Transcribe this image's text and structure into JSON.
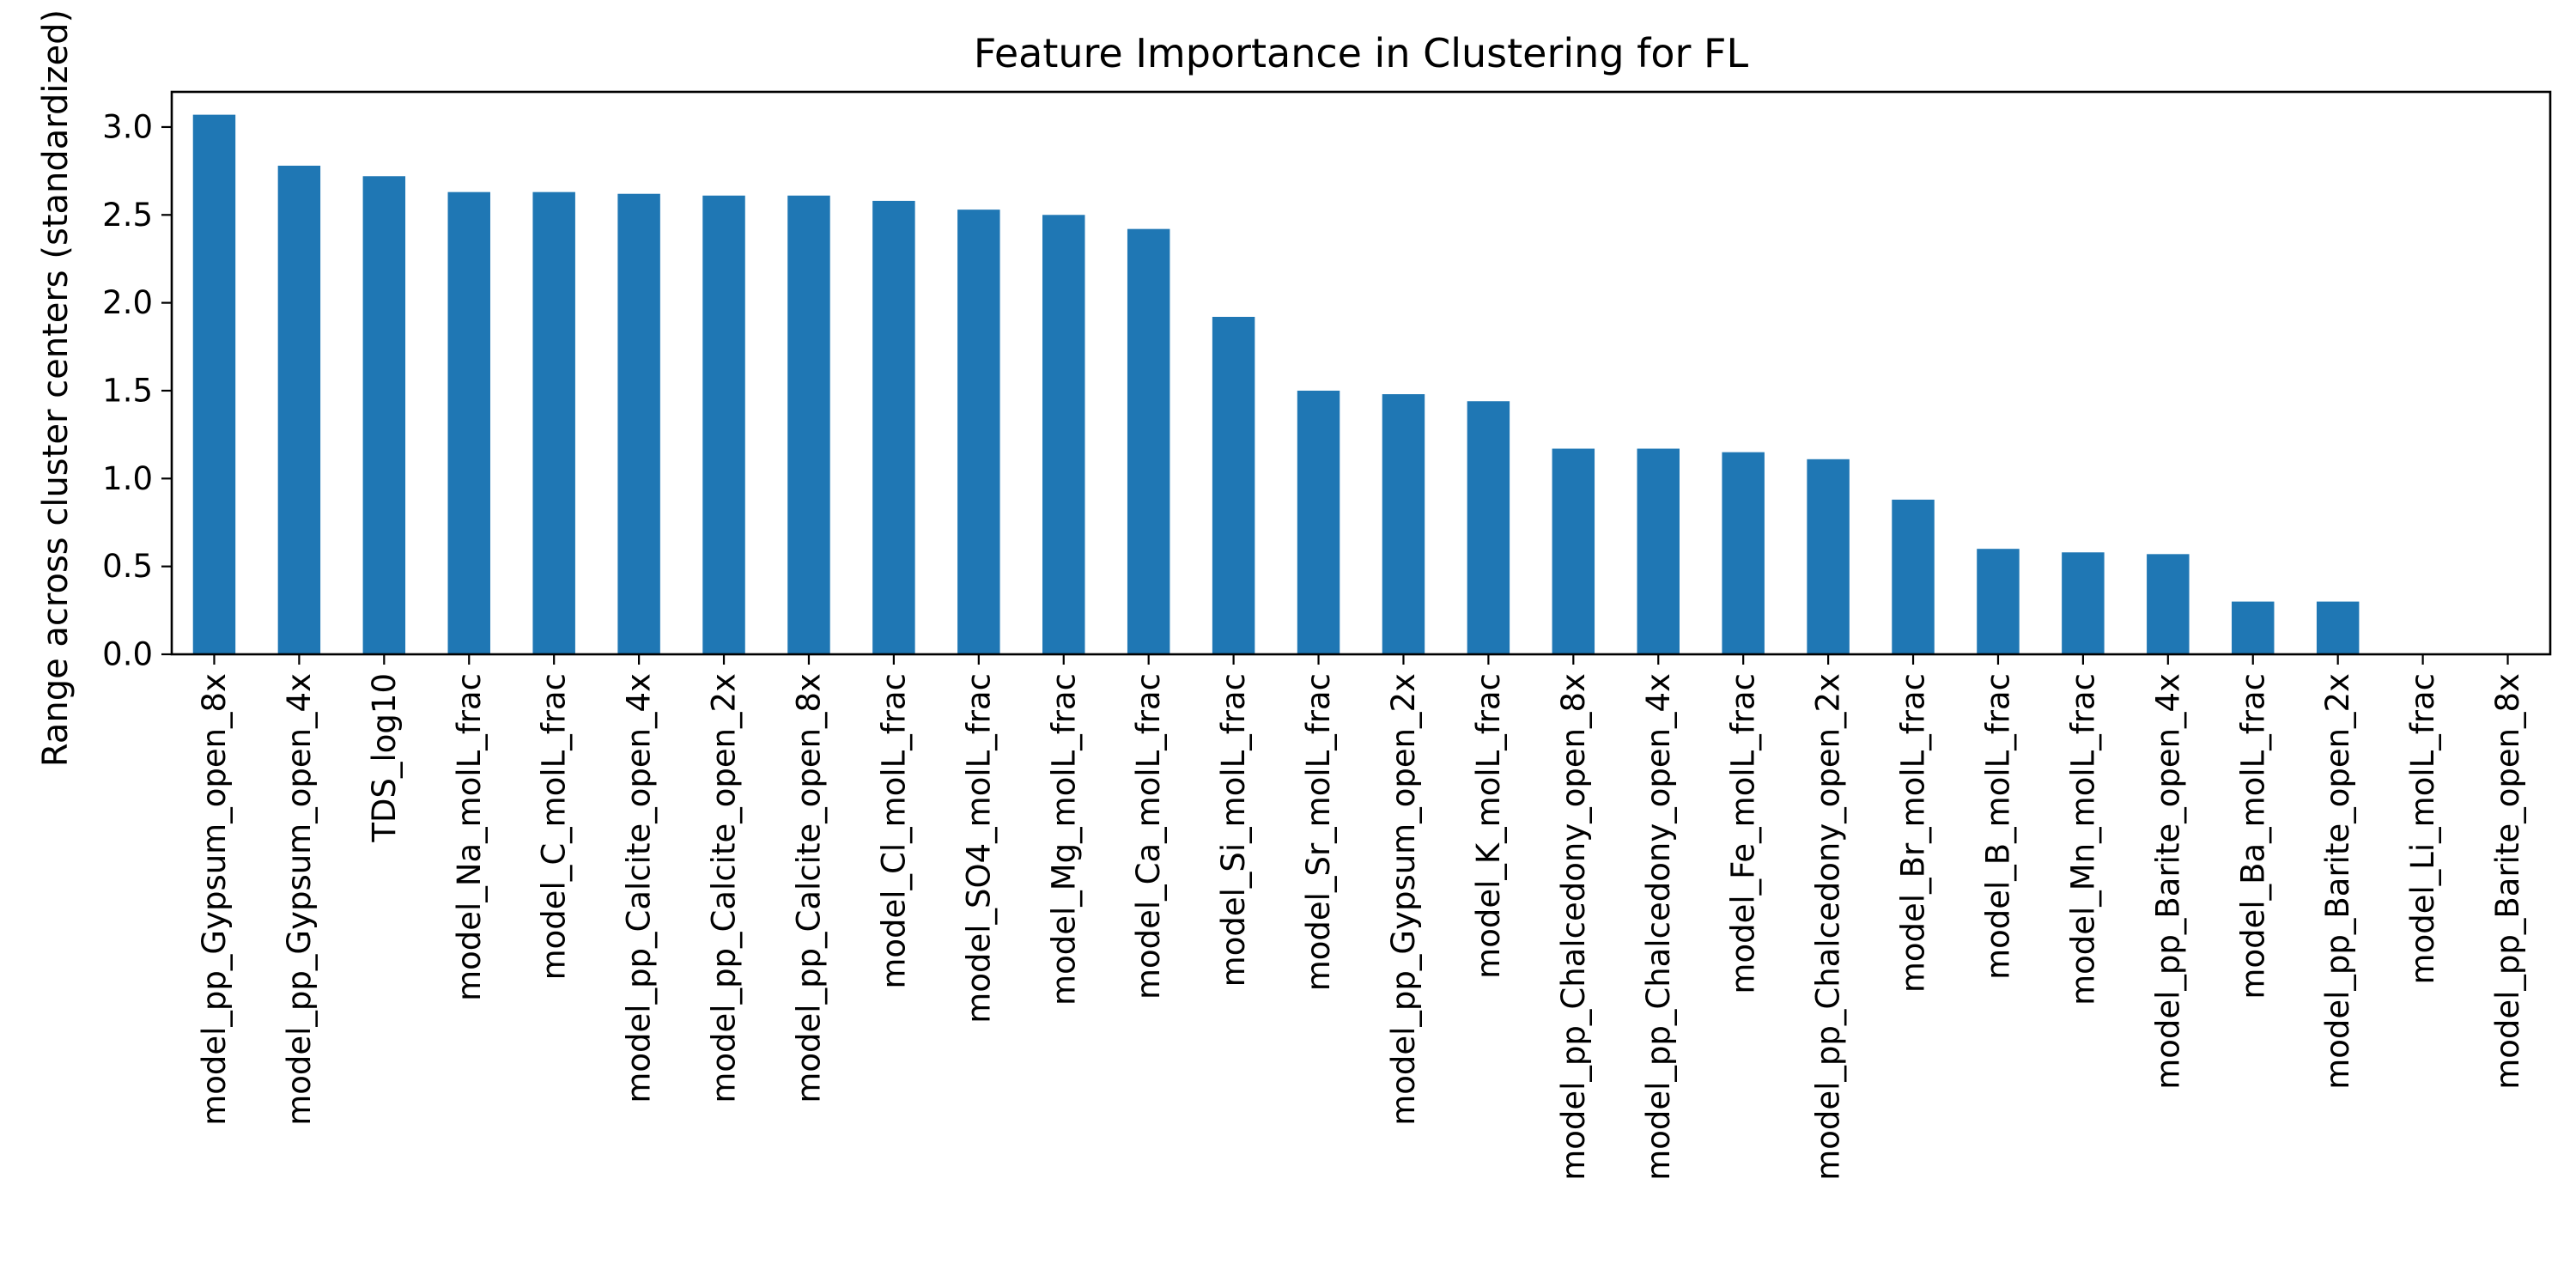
{
  "chart_data": {
    "type": "bar",
    "title": "Feature Importance in Clustering for FL",
    "xlabel": "",
    "ylabel": "Range across cluster centers (standardized)",
    "ylim": [
      0,
      3.2
    ],
    "yticks": [
      "0.0",
      "0.5",
      "1.0",
      "1.5",
      "2.0",
      "2.5",
      "3.0"
    ],
    "grid": false,
    "bar_color": "#1f77b4",
    "categories": [
      "model_pp_Gypsum_open_8x",
      "model_pp_Gypsum_open_4x",
      "TDS_log10",
      "model_Na_molL_frac",
      "model_C_molL_frac",
      "model_pp_Calcite_open_4x",
      "model_pp_Calcite_open_2x",
      "model_pp_Calcite_open_8x",
      "model_Cl_molL_frac",
      "model_SO4_molL_frac",
      "model_Mg_molL_frac",
      "model_Ca_molL_frac",
      "model_Si_molL_frac",
      "model_Sr_molL_frac",
      "model_pp_Gypsum_open_2x",
      "model_K_molL_frac",
      "model_pp_Chalcedony_open_8x",
      "model_pp_Chalcedony_open_4x",
      "model_Fe_molL_frac",
      "model_pp_Chalcedony_open_2x",
      "model_Br_molL_frac",
      "model_B_molL_frac",
      "model_Mn_molL_frac",
      "model_pp_Barite_open_4x",
      "model_Ba_molL_frac",
      "model_pp_Barite_open_2x",
      "model_Li_molL_frac",
      "model_pp_Barite_open_8x"
    ],
    "values": [
      3.07,
      2.78,
      2.72,
      2.63,
      2.63,
      2.62,
      2.61,
      2.61,
      2.58,
      2.53,
      2.5,
      2.42,
      1.92,
      1.5,
      1.48,
      1.44,
      1.17,
      1.17,
      1.15,
      1.11,
      0.88,
      0.6,
      0.58,
      0.57,
      0.3,
      0.3,
      0.0,
      0.0
    ]
  }
}
